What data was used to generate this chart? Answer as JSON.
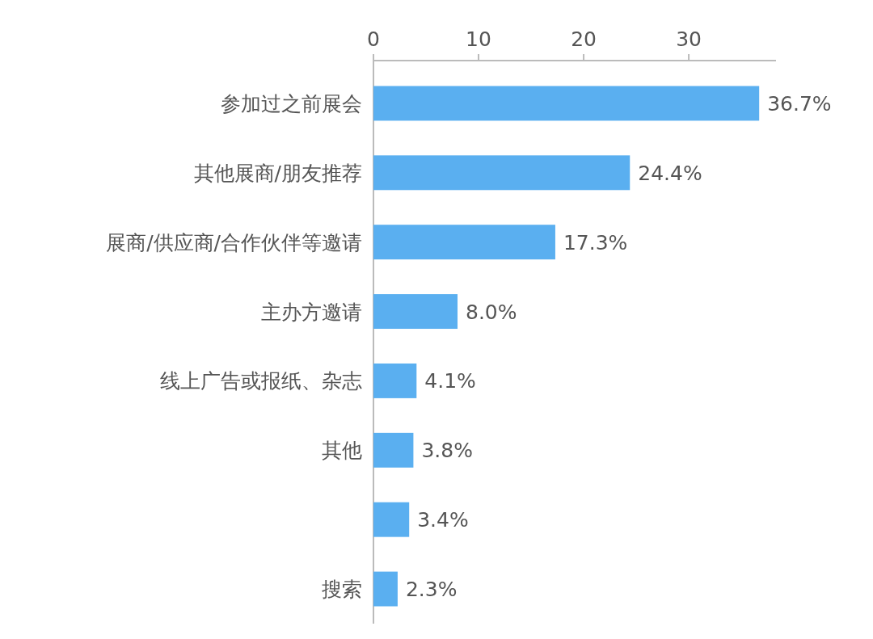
{
  "chart_data": {
    "type": "bar",
    "orientation": "horizontal",
    "categories": [
      "参加过之前展会",
      "其他展商/朋友推荐",
      "展商/供应商/合作伙伴等邀请",
      "主办方邀请",
      "线上广告或报纸、杂志",
      "其他",
      null,
      "搜索"
    ],
    "values": [
      36.7,
      24.4,
      17.3,
      8.0,
      4.1,
      3.8,
      3.4,
      2.3
    ],
    "value_labels": [
      "36.7%",
      "24.4%",
      "17.3%",
      "8.0%",
      "4.1%",
      "3.8%",
      "3.4%",
      "2.3%"
    ],
    "color": "#5aaff0",
    "xlim": [
      0,
      38.3
    ],
    "xticks": [
      0,
      10,
      20,
      30
    ],
    "grid": false
  }
}
